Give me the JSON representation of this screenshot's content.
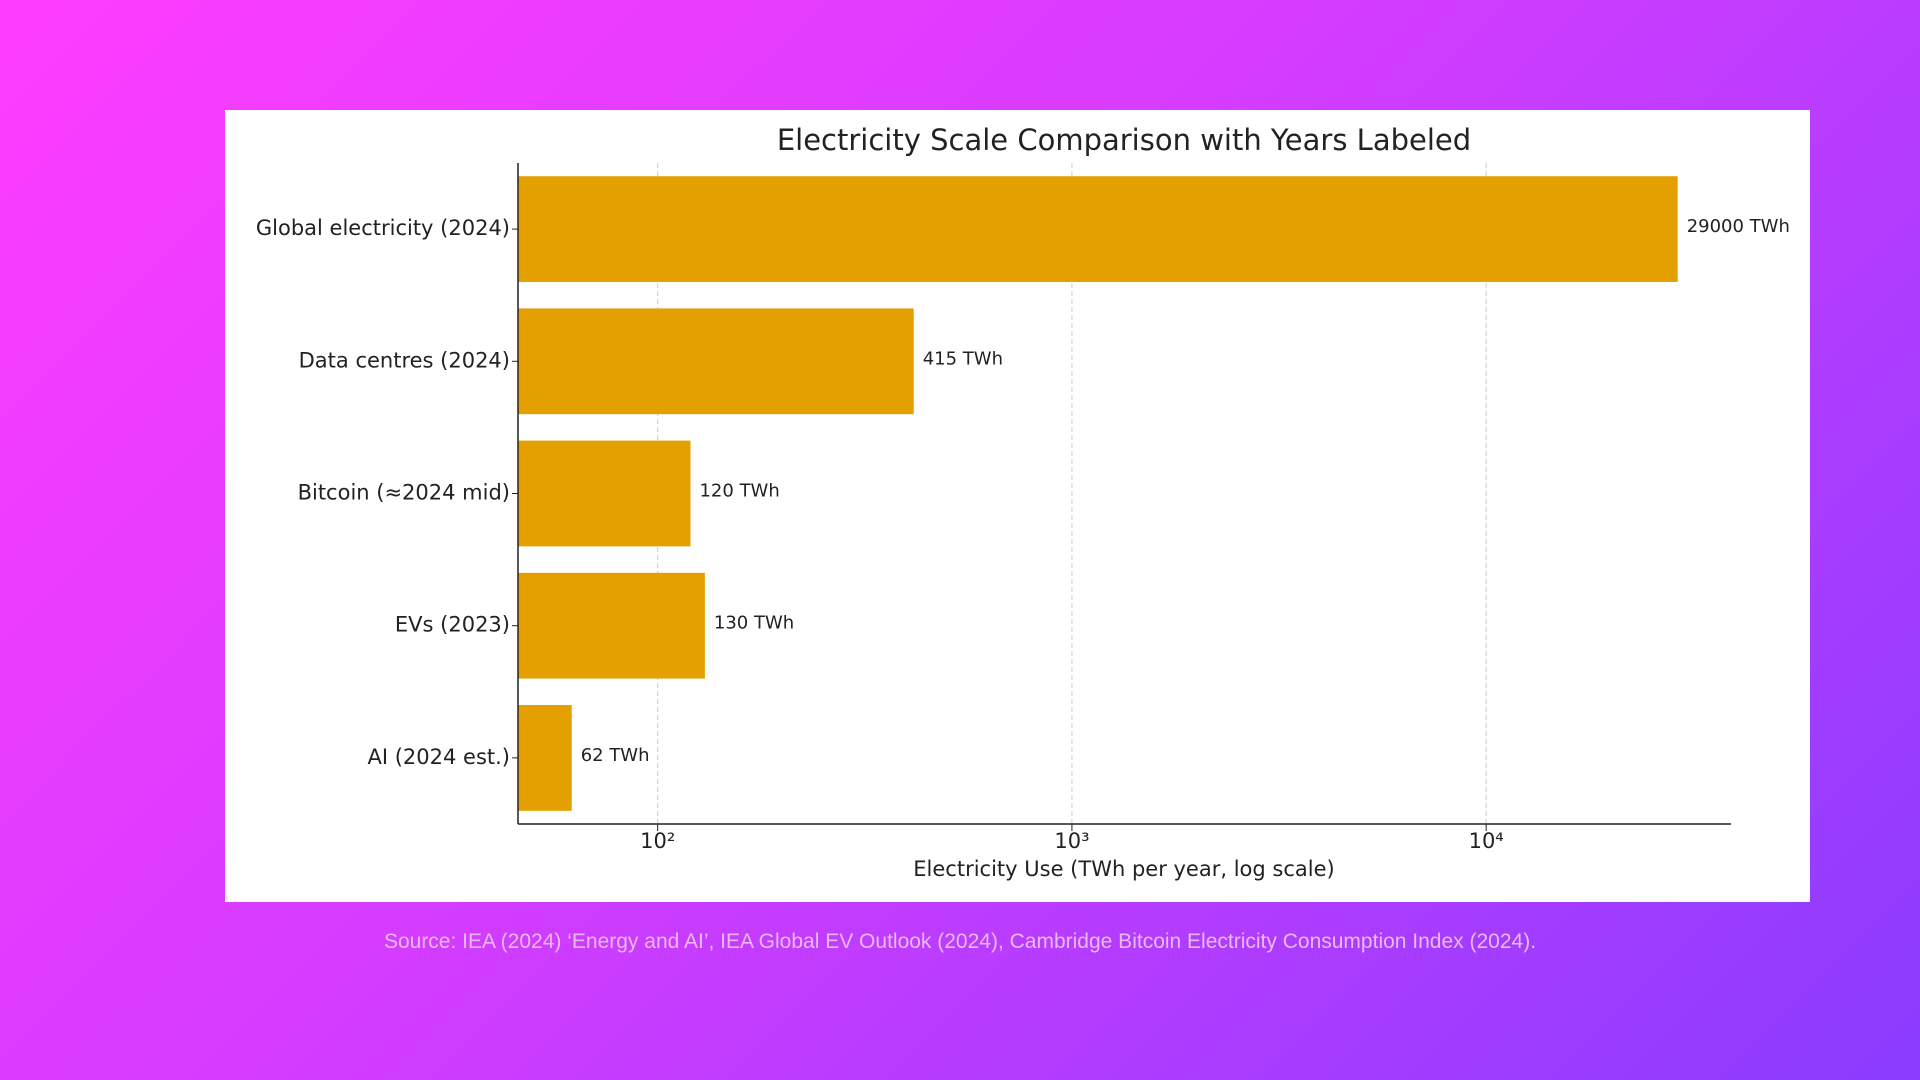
{
  "chart_data": {
    "type": "barh",
    "title": "Electricity Scale Comparison with Years Labeled",
    "xlabel": "Electricity Use (TWh per year, log scale)",
    "categories": [
      "Global electricity (2024)",
      "Data centres (2024)",
      "Bitcoin (≈2024 mid)",
      "EVs (2023)",
      "AI (2024 est.)"
    ],
    "values": [
      29000,
      415,
      120,
      130,
      62
    ],
    "value_labels": [
      "29000 TWh",
      "415 TWh",
      "120 TWh",
      "130 TWh",
      "62 TWh"
    ],
    "color": "#e3a000",
    "xscale": "log",
    "xlim": [
      46,
      39000
    ],
    "xticks": [
      {
        "value": 100,
        "label": "10²"
      },
      {
        "value": 1000,
        "label": "10³"
      },
      {
        "value": 10000,
        "label": "10⁴"
      }
    ],
    "grid": true
  },
  "source": "Source: IEA (2024) ‘Energy and AI’, IEA Global EV Outlook (2024), Cambridge Bitcoin Electricity Consumption Index (2024)."
}
